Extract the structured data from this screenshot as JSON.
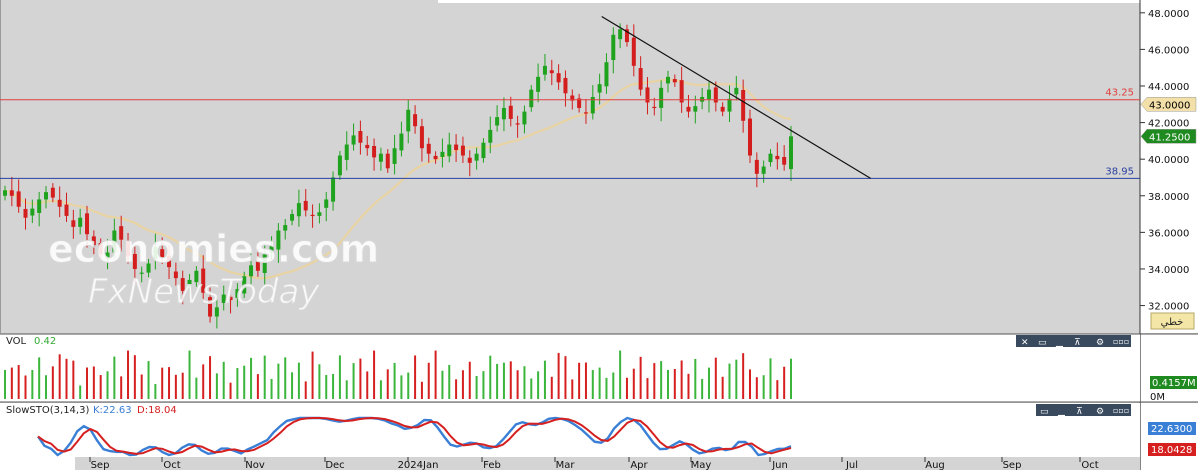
{
  "chart_data": [
    {
      "type": "candlestick",
      "price_axis": {
        "ticks": [
          "48.0000",
          "46.0000",
          "44.0000",
          "42.0000",
          "40.0000",
          "38.0000",
          "36.0000",
          "34.0000",
          "32.0000"
        ],
        "ylim": [
          30.5,
          48.7
        ]
      },
      "months": [
        "Sep",
        "Oct",
        "Nov",
        "Dec",
        "2024Jan",
        "Feb",
        "Mar",
        "Apr",
        "May",
        "Jun",
        "Jul",
        "Aug",
        "Sep",
        "Oct"
      ],
      "horizontal_lines": [
        {
          "value": 43.25,
          "label": "43.25",
          "color": "#e04040"
        },
        {
          "value": 38.95,
          "label": "38.95",
          "color": "#2a3fa0"
        }
      ],
      "trendline": {
        "from": {
          "date": "2024-04-03",
          "value": 47.8
        },
        "to": {
          "date": "2024-07-25",
          "value": 38.95
        }
      },
      "price_marks": [
        {
          "label": "43.0000",
          "value": 43.0,
          "bg": "#f3dfa8",
          "fg": "#000"
        },
        {
          "label": "41.2500",
          "value": 41.25,
          "bg": "#1f8a1f",
          "fg": "#fff"
        }
      ],
      "note_button": "خطي",
      "moving_average_color": "#e9d3a2",
      "closes": [
        38.3,
        38.0,
        37.4,
        36.8,
        37.3,
        37.8,
        38.2,
        37.9,
        37.4,
        36.9,
        36.3,
        36.8,
        35.9,
        35.3,
        34.8,
        34.9,
        36.1,
        35.6,
        34.7,
        34.0,
        33.8,
        34.3,
        35.2,
        34.6,
        34.1,
        33.5,
        32.8,
        33.4,
        33.9,
        32.7,
        31.4,
        31.9,
        32.6,
        32.3,
        32.9,
        33.6,
        34.2,
        33.9,
        34.8,
        35.3,
        36.1,
        36.4,
        37.0,
        37.6,
        37.2,
        36.9,
        37.1,
        37.8,
        39.0,
        40.2,
        40.8,
        41.3,
        40.9,
        40.6,
        40.1,
        40.3,
        39.5,
        40.6,
        41.4,
        42.7,
        41.8,
        40.6,
        40.3,
        40.0,
        40.4,
        40.8,
        40.5,
        40.2,
        39.8,
        40.3,
        40.9,
        41.6,
        42.3,
        42.8,
        42.2,
        41.9,
        42.6,
        43.8,
        44.5,
        45.1,
        44.7,
        44.2,
        43.6,
        43.2,
        42.8,
        42.5,
        43.4,
        44.1,
        45.3,
        46.8,
        47.1,
        46.4,
        45.1,
        43.8,
        43.1,
        42.8,
        43.9,
        44.5,
        44.2,
        43.1,
        42.6,
        42.9,
        43.4,
        43.8,
        43.1,
        42.6,
        43.3,
        43.9,
        42.1,
        40.2,
        39.2,
        39.6,
        40.3,
        40.0,
        39.7,
        41.25
      ],
      "volume": {
        "label": "VOL",
        "value": "0.42",
        "axis_labels": [
          "0.4157M",
          "0M"
        ]
      },
      "stochastic": {
        "label": "SlowSTO(3,14,3)",
        "k_text": "K:22.63",
        "d_text": "D:18.04",
        "k_mark": "22.6300",
        "d_mark": "18.0428",
        "k_color": "#3a7fd6",
        "d_color": "#d62020"
      }
    }
  ],
  "watermark": {
    "line1": "economies.com",
    "line2": "FxNewsToday"
  },
  "toolbar_icons": [
    "close-icon",
    "maximize-icon",
    "collapse-icon",
    "move-up-icon",
    "settings-icon",
    "more-icon"
  ]
}
